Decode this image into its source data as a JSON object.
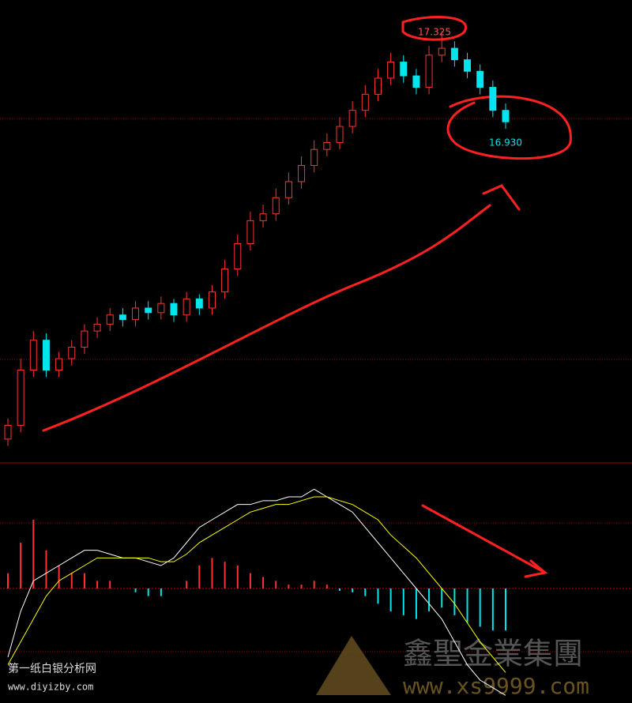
{
  "chart_data": [
    {
      "type": "candlestick",
      "annotations": [
        "17.325",
        "16.930"
      ],
      "up_color": "#ff3232",
      "down_color": "#00e5ee",
      "ylim": [
        15.45,
        17.46
      ],
      "open": [
        15.55,
        15.61,
        15.85,
        15.98,
        15.85,
        15.9,
        15.95,
        16.02,
        16.05,
        16.09,
        16.07,
        16.12,
        16.1,
        16.14,
        16.09,
        16.16,
        16.12,
        16.19,
        16.29,
        16.4,
        16.5,
        16.53,
        16.6,
        16.67,
        16.74,
        16.81,
        16.84,
        16.91,
        16.98,
        17.05,
        17.12,
        17.19,
        17.13,
        17.08,
        17.22,
        17.25,
        17.2,
        17.15,
        17.08,
        16.98
      ],
      "high": [
        15.64,
        15.9,
        16.02,
        16.01,
        15.93,
        15.98,
        16.05,
        16.08,
        16.12,
        16.12,
        16.15,
        16.15,
        16.17,
        16.16,
        16.19,
        16.18,
        16.22,
        16.33,
        16.44,
        16.54,
        16.57,
        16.64,
        16.71,
        16.78,
        16.85,
        16.88,
        16.95,
        17.02,
        17.09,
        17.16,
        17.23,
        17.22,
        17.16,
        17.26,
        17.325,
        17.28,
        17.23,
        17.18,
        17.11,
        17.01
      ],
      "low": [
        15.52,
        15.58,
        15.82,
        15.82,
        15.82,
        15.87,
        15.92,
        15.99,
        16.02,
        16.04,
        16.04,
        16.07,
        16.07,
        16.06,
        16.06,
        16.09,
        16.09,
        16.16,
        16.26,
        16.37,
        16.47,
        16.5,
        16.57,
        16.64,
        16.71,
        16.78,
        16.81,
        16.88,
        16.95,
        17.02,
        17.09,
        17.1,
        17.05,
        17.05,
        17.19,
        17.17,
        17.12,
        17.05,
        16.95,
        16.9
      ],
      "close": [
        15.61,
        15.85,
        15.98,
        15.85,
        15.9,
        15.95,
        16.02,
        16.05,
        16.09,
        16.07,
        16.12,
        16.1,
        16.14,
        16.09,
        16.16,
        16.12,
        16.19,
        16.29,
        16.4,
        16.5,
        16.53,
        16.6,
        16.67,
        16.74,
        16.81,
        16.84,
        16.91,
        16.98,
        17.05,
        17.12,
        17.19,
        17.13,
        17.08,
        17.22,
        17.25,
        17.2,
        17.15,
        17.08,
        16.98,
        16.93
      ]
    },
    {
      "type": "macd",
      "ylim": [
        -0.15,
        0.15
      ],
      "up_color": "#ff3232",
      "down_color": "#00e5ee",
      "series": [
        {
          "color": "#ffffff",
          "values": [
            -0.09,
            -0.03,
            0.01,
            0.02,
            0.03,
            0.04,
            0.05,
            0.05,
            0.045,
            0.04,
            0.04,
            0.035,
            0.03,
            0.04,
            0.06,
            0.08,
            0.09,
            0.1,
            0.11,
            0.11,
            0.115,
            0.115,
            0.12,
            0.12,
            0.13,
            0.12,
            0.11,
            0.1,
            0.08,
            0.06,
            0.04,
            0.02,
            0.0,
            -0.02,
            -0.04,
            -0.07,
            -0.1,
            -0.12,
            -0.13,
            -0.14
          ]
        },
        {
          "color": "#ffff00",
          "values": [
            -0.1,
            -0.07,
            -0.04,
            -0.01,
            0.01,
            0.02,
            0.03,
            0.04,
            0.04,
            0.04,
            0.04,
            0.04,
            0.035,
            0.035,
            0.045,
            0.06,
            0.07,
            0.08,
            0.09,
            0.1,
            0.105,
            0.11,
            0.11,
            0.115,
            0.12,
            0.12,
            0.115,
            0.11,
            0.1,
            0.09,
            0.07,
            0.055,
            0.04,
            0.02,
            0.0,
            -0.02,
            -0.045,
            -0.07,
            -0.09,
            -0.11
          ]
        }
      ],
      "values": [
        0.02,
        0.06,
        0.09,
        0.05,
        0.03,
        0.02,
        0.02,
        0.01,
        0.01,
        0.0,
        -0.005,
        -0.01,
        -0.01,
        0.0,
        0.01,
        0.03,
        0.04,
        0.035,
        0.03,
        0.02,
        0.015,
        0.01,
        0.005,
        0.005,
        0.01,
        0.005,
        -0.003,
        -0.005,
        -0.01,
        -0.02,
        -0.03,
        -0.035,
        -0.04,
        -0.03,
        -0.025,
        -0.035,
        -0.045,
        -0.05,
        -0.055,
        -0.055
      ]
    }
  ],
  "watermarks": [
    "第一纸白银分析网",
    "www.diyizby.com",
    "鑫聖金業集團",
    "www.xs9999.com"
  ]
}
